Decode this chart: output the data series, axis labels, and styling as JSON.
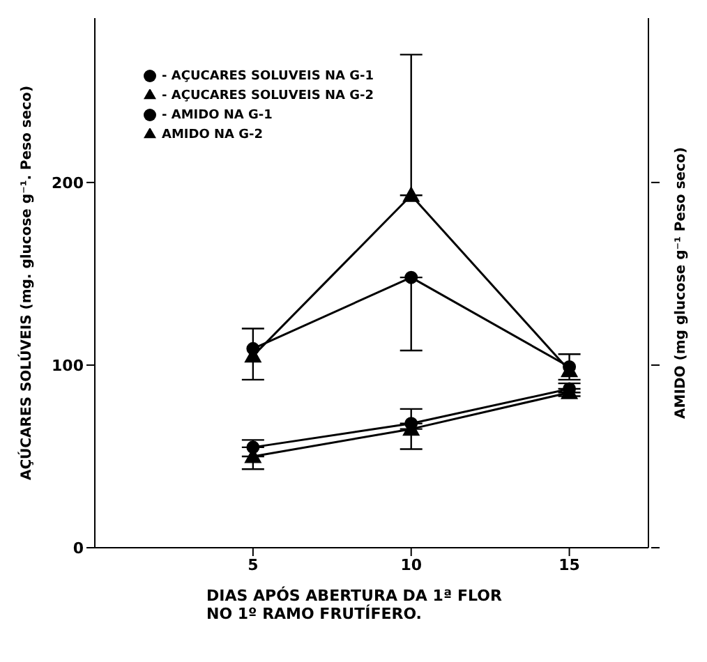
{
  "chart_data": {
    "type": "line",
    "xlabel": "DIAS APÓS ABERTURA DA 1ª FLOR\nNO 1º RAMO FRUTÍFERO.",
    "ylabel": "AÇÚCARES SOLÚVEIS (mg. glucose g⁻¹. Peso seco)",
    "y2label": "AMIDO (mg glucose g⁻¹ Peso seco)",
    "x": [
      5,
      10,
      15
    ],
    "xlim": [
      0,
      17.5
    ],
    "xticks": [
      5,
      10,
      15
    ],
    "ylim": [
      0,
      290
    ],
    "yticks": [
      0,
      100,
      200
    ],
    "legend": "top left",
    "line_style": "solid",
    "series": [
      {
        "name": "- AÇUCARES SOLUVEIS NA G-1",
        "color": "#000000",
        "marker": "circle",
        "values": [
          55,
          68,
          87
        ],
        "errors": [
          [
            55,
            59
          ],
          [
            68,
            76
          ],
          [
            87,
            90
          ]
        ]
      },
      {
        "name": "- AÇUCARES SOLUVEIS NA G-2",
        "color": "#000000",
        "marker": "triangle",
        "values": [
          50,
          65,
          85
        ],
        "errors": [
          [
            43,
            50
          ],
          [
            54,
            65
          ],
          [
            83,
            85
          ]
        ]
      },
      {
        "name": "- AMIDO NA G-1",
        "color": "#000000",
        "marker": "circle",
        "values": [
          109,
          148,
          99
        ],
        "errors": [
          [
            92,
            120
          ],
          [
            108,
            148
          ],
          [
            92,
            106
          ]
        ]
      },
      {
        "name": "AMIDO NA G-2",
        "color": "#000000",
        "marker": "triangle",
        "values": [
          105,
          193,
          97
        ],
        "errors": [
          null,
          [
            193,
            270
          ],
          null
        ]
      }
    ]
  }
}
